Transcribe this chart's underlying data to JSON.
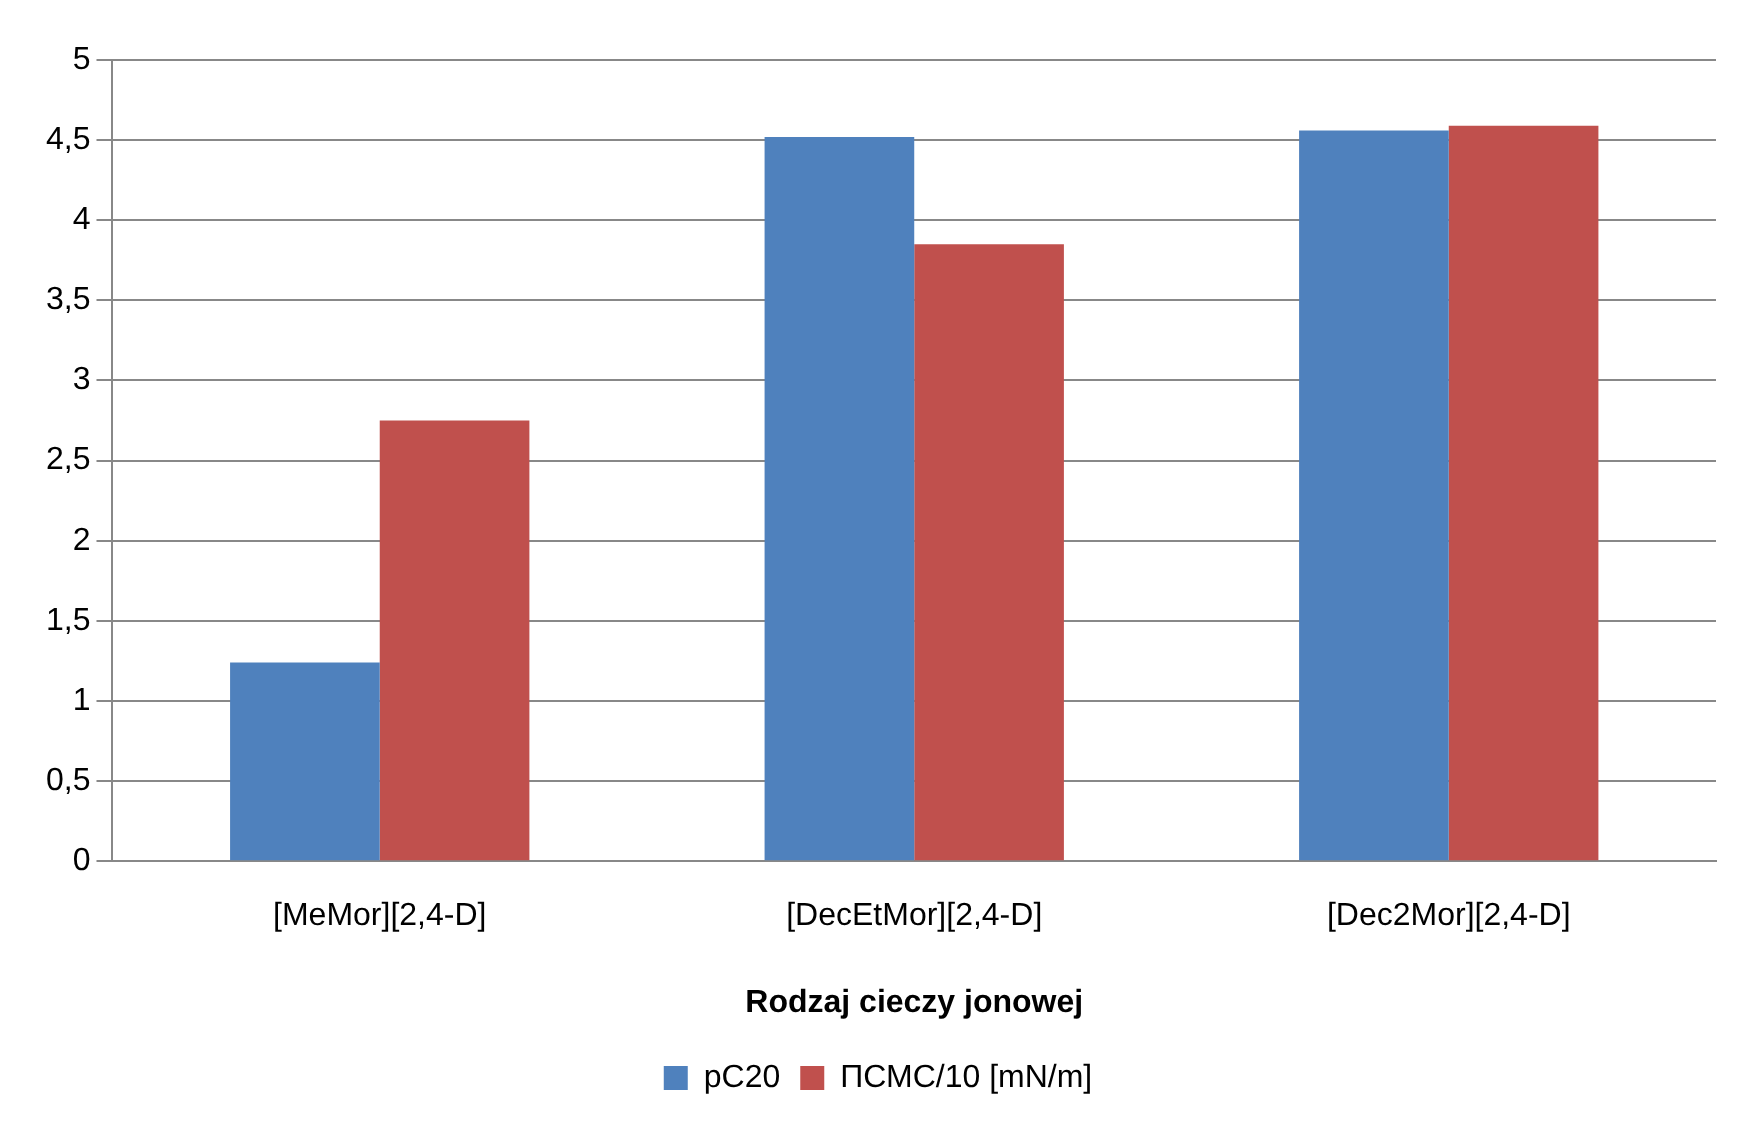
{
  "chart_data": {
    "type": "bar",
    "xlabel": "Rodzaj cieczy jonowej",
    "categories": [
      "[MeMor][2,4-D]",
      "[DecEtMor][2,4-D]",
      "[Dec2Mor][2,4-D]"
    ],
    "series": [
      {
        "name": "pC20",
        "color": "#4f81bd",
        "values": [
          1.24,
          4.52,
          4.56
        ]
      },
      {
        "name": "ПСМС/10 [mN/m]",
        "color": "#c0504d",
        "values": [
          2.75,
          3.85,
          4.59
        ]
      }
    ],
    "ylim": [
      0,
      5
    ],
    "yticks": [
      0,
      {
        "value": 0.5,
        "label": "0,5"
      },
      1,
      {
        "value": 1.5,
        "label": "1,5"
      },
      2,
      {
        "value": 2.5,
        "label": "2,5"
      },
      3,
      {
        "value": 3.5,
        "label": "3,5"
      },
      4,
      {
        "value": 4.5,
        "label": "4,5"
      },
      5
    ],
    "grid": "y",
    "legend": "bottom"
  }
}
